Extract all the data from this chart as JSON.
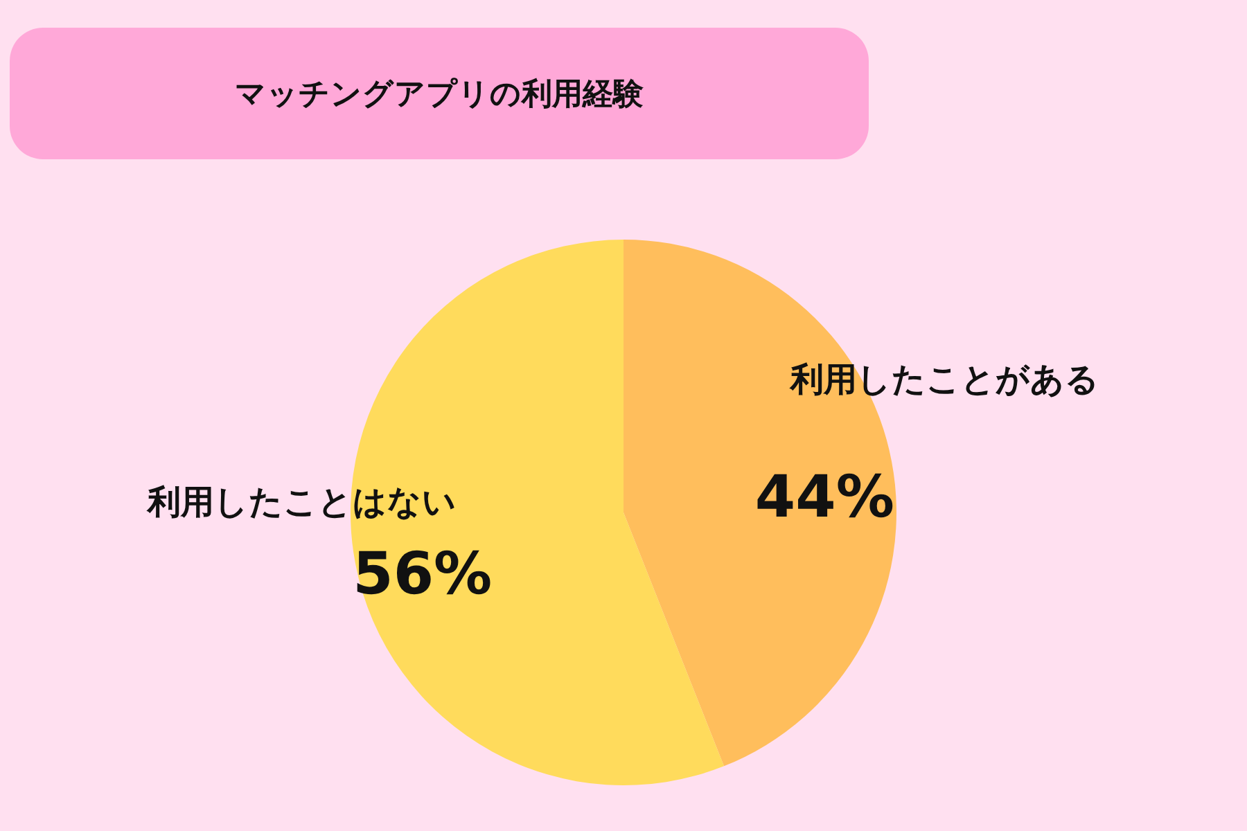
{
  "chart_data": {
    "type": "pie",
    "title": "マッチングアプリの利用経験",
    "categories": [
      "利用したことがある",
      "利用したことはない"
    ],
    "values": [
      44,
      56
    ],
    "colors": [
      "#ffbe5c",
      "#ffdb5c"
    ],
    "value_labels": [
      "44%",
      "56%"
    ],
    "legend": false
  }
}
